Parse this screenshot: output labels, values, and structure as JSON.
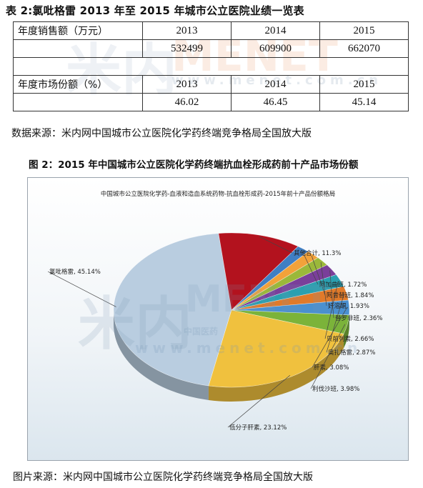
{
  "table": {
    "title": "表 2:氯吡格雷 2013 年至 2015 年城市公立医院业绩一览表",
    "sales_label": "年度销售额（万元）",
    "share_label": "年度市场份额（%）",
    "years": [
      "2013",
      "2014",
      "2015"
    ],
    "sales": [
      "532499",
      "609900",
      "662070"
    ],
    "shares": [
      "46.02",
      "46.45",
      "45.14"
    ],
    "source": "数据来源：米内网中国城市公立医院化学药终端竞争格局全国放大版"
  },
  "figure": {
    "title": "图 2：2015 年中国城市公立医院化学药终端抗血栓形成药前十产品市场份额",
    "source": "图片来源：米内网中国城市公立医院化学药终端竞争格局全国放大版"
  },
  "watermarks": [
    "米内",
    "MENET",
    "www.menet.com.cn",
    "中国医药"
  ],
  "chart_data": {
    "type": "pie",
    "title": "中国城市公立医院化学药-血液和造血系统药物-抗血栓形成药-2015年前十产品份额格局",
    "slices": [
      {
        "label": "氯吡格雷, 45.14%",
        "value": 45.14,
        "color": "#b9cde0"
      },
      {
        "label": "其他合计, 11.3%",
        "value": 11.3,
        "color": "#b3121e"
      },
      {
        "label": "阿加曲班, 1.72%",
        "value": 1.72,
        "color": "#3f7fc4"
      },
      {
        "label": "阿昔替班, 1.84%",
        "value": 1.84,
        "color": "#f2a23a"
      },
      {
        "label": "奸溶酮, 1.93%",
        "value": 1.93,
        "color": "#9bb83a"
      },
      {
        "label": "替罗非班, 2.36%",
        "value": 2.36,
        "color": "#7a3f9a"
      },
      {
        "label": "贝前列素, 2.66%",
        "value": 2.66,
        "color": "#2aa0b0"
      },
      {
        "label": "奥扎格雷, 2.87%",
        "value": 2.87,
        "color": "#e07a2a"
      },
      {
        "label": "肝素, 3.08%",
        "value": 3.08,
        "color": "#4a90d0"
      },
      {
        "label": "利伐沙班, 3.98%",
        "value": 3.98,
        "color": "#7bb33a"
      },
      {
        "label": "低分子肝素, 23.12%",
        "value": 23.12,
        "color": "#f0c13e"
      }
    ]
  }
}
